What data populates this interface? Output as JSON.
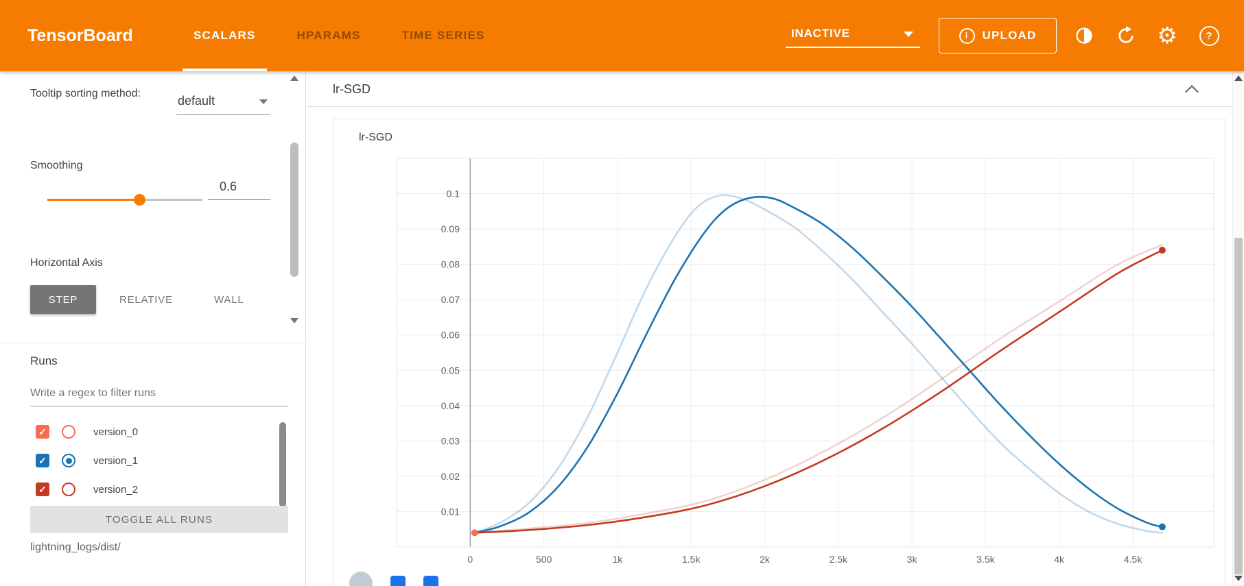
{
  "colors": {
    "accent": "#f57c00",
    "run_colors": {
      "version_0": "#fb6d51",
      "version_1": "#1a73b5",
      "version_2": "#c5391f"
    }
  },
  "icons": {
    "settings_glyph": "⚙",
    "help_glyph": "?",
    "upload_info_glyph": "i",
    "check_glyph": "✓"
  },
  "header": {
    "brand": "TensorBoard",
    "tabs": [
      {
        "label": "SCALARS",
        "active": true
      },
      {
        "label": "HPARAMS",
        "active": false
      },
      {
        "label": "TIME SERIES",
        "active": false
      }
    ],
    "status": "INACTIVE",
    "upload": "UPLOAD"
  },
  "sidebar": {
    "tooltip_sorting_label": "Tooltip sorting method:",
    "tooltip_sorting_value": "default",
    "smoothing_label": "Smoothing",
    "smoothing_value": "0.6",
    "horizontal_axis_label": "Horizontal Axis",
    "axis_buttons": [
      {
        "label": "STEP",
        "active": true
      },
      {
        "label": "RELATIVE",
        "active": false
      },
      {
        "label": "WALL",
        "active": false
      }
    ],
    "runs_label": "Runs",
    "filter_placeholder": "Write a regex to filter runs",
    "runs": [
      {
        "name": "version_0",
        "color": "#fb6d51",
        "checked": true,
        "radio": false
      },
      {
        "name": "version_1",
        "color": "#1a73b5",
        "checked": true,
        "radio": true
      },
      {
        "name": "version_2",
        "color": "#c5391f",
        "checked": true,
        "radio": false
      }
    ],
    "toggle_all_label": "TOGGLE ALL RUNS",
    "logdir": "lightning_logs/dist/"
  },
  "main": {
    "group_title": "lr-SGD"
  },
  "chart_data": {
    "type": "line",
    "title": "lr-SGD",
    "xlim": [
      -500,
      5050
    ],
    "ylim": [
      0,
      0.11
    ],
    "grid": true,
    "legend_position": "none",
    "x_ticks": [
      {
        "v": 0,
        "label": "0"
      },
      {
        "v": 500,
        "label": "500"
      },
      {
        "v": 1000,
        "label": "1k"
      },
      {
        "v": 1500,
        "label": "1.5k"
      },
      {
        "v": 2000,
        "label": "2k"
      },
      {
        "v": 2500,
        "label": "2.5k"
      },
      {
        "v": 3000,
        "label": "3k"
      },
      {
        "v": 3500,
        "label": "3.5k"
      },
      {
        "v": 4000,
        "label": "4k"
      },
      {
        "v": 4500,
        "label": "4.5k"
      }
    ],
    "y_ticks": [
      {
        "v": 0.01,
        "label": "0.01"
      },
      {
        "v": 0.02,
        "label": "0.02"
      },
      {
        "v": 0.03,
        "label": "0.03"
      },
      {
        "v": 0.04,
        "label": "0.04"
      },
      {
        "v": 0.05,
        "label": "0.05"
      },
      {
        "v": 0.06,
        "label": "0.06"
      },
      {
        "v": 0.07,
        "label": "0.07"
      },
      {
        "v": 0.08,
        "label": "0.08"
      },
      {
        "v": 0.09,
        "label": "0.09"
      },
      {
        "v": 0.1,
        "label": "0.1"
      }
    ],
    "series": [
      {
        "name": "version_1",
        "kind": "raw",
        "color": "#1a73b5",
        "opacity": 0.27,
        "points": [
          [
            30,
            0.004
          ],
          [
            200,
            0.0068
          ],
          [
            400,
            0.0125
          ],
          [
            600,
            0.0225
          ],
          [
            800,
            0.037
          ],
          [
            1000,
            0.055
          ],
          [
            1200,
            0.0735
          ],
          [
            1400,
            0.0885
          ],
          [
            1550,
            0.0965
          ],
          [
            1700,
            0.0995
          ],
          [
            1850,
            0.0985
          ],
          [
            2000,
            0.0955
          ],
          [
            2200,
            0.0905
          ],
          [
            2400,
            0.0835
          ],
          [
            2600,
            0.0755
          ],
          [
            2800,
            0.0665
          ],
          [
            3000,
            0.0575
          ],
          [
            3200,
            0.048
          ],
          [
            3400,
            0.0385
          ],
          [
            3600,
            0.0295
          ],
          [
            3800,
            0.022
          ],
          [
            4000,
            0.0152
          ],
          [
            4200,
            0.01
          ],
          [
            4400,
            0.0065
          ],
          [
            4600,
            0.0045
          ],
          [
            4700,
            0.004
          ]
        ]
      },
      {
        "name": "version_2",
        "kind": "raw",
        "color": "#c5391f",
        "opacity": 0.22,
        "points": [
          [
            30,
            0.004
          ],
          [
            400,
            0.0052
          ],
          [
            800,
            0.0068
          ],
          [
            1200,
            0.0095
          ],
          [
            1600,
            0.013
          ],
          [
            2000,
            0.019
          ],
          [
            2400,
            0.027
          ],
          [
            2800,
            0.0365
          ],
          [
            3200,
            0.0475
          ],
          [
            3600,
            0.059
          ],
          [
            4000,
            0.0695
          ],
          [
            4400,
            0.08
          ],
          [
            4700,
            0.0855
          ]
        ]
      },
      {
        "name": "version_1",
        "kind": "smoothed",
        "color": "#1a73b5",
        "opacity": 1,
        "points": [
          [
            30,
            0.004
          ],
          [
            200,
            0.0058
          ],
          [
            400,
            0.0098
          ],
          [
            600,
            0.0172
          ],
          [
            800,
            0.0285
          ],
          [
            1000,
            0.0435
          ],
          [
            1200,
            0.0605
          ],
          [
            1400,
            0.0765
          ],
          [
            1600,
            0.0895
          ],
          [
            1750,
            0.096
          ],
          [
            1900,
            0.0988
          ],
          [
            2050,
            0.0987
          ],
          [
            2200,
            0.096
          ],
          [
            2400,
            0.0912
          ],
          [
            2600,
            0.0845
          ],
          [
            2800,
            0.0765
          ],
          [
            3000,
            0.068
          ],
          [
            3200,
            0.0588
          ],
          [
            3400,
            0.0495
          ],
          [
            3600,
            0.0402
          ],
          [
            3800,
            0.0315
          ],
          [
            4000,
            0.0235
          ],
          [
            4200,
            0.0165
          ],
          [
            4400,
            0.0108
          ],
          [
            4600,
            0.0068
          ],
          [
            4700,
            0.0057
          ]
        ]
      },
      {
        "name": "version_2",
        "kind": "smoothed",
        "color": "#c5391f",
        "opacity": 1,
        "points": [
          [
            30,
            0.004
          ],
          [
            400,
            0.0048
          ],
          [
            800,
            0.0062
          ],
          [
            1200,
            0.0085
          ],
          [
            1600,
            0.0118
          ],
          [
            2000,
            0.0172
          ],
          [
            2400,
            0.0245
          ],
          [
            2800,
            0.0335
          ],
          [
            3200,
            0.044
          ],
          [
            3600,
            0.0555
          ],
          [
            4000,
            0.0665
          ],
          [
            4400,
            0.0775
          ],
          [
            4700,
            0.084
          ]
        ]
      },
      {
        "name": "version_0",
        "kind": "smoothed",
        "color": "#fb6d51",
        "opacity": 1,
        "points": [
          [
            30,
            0.004
          ]
        ]
      }
    ],
    "end_markers": [
      {
        "run": "version_0",
        "x": 30,
        "y": 0.004,
        "color": "#fb6d51"
      },
      {
        "run": "version_1",
        "x": 4700,
        "y": 0.0057,
        "color": "#1a73b5"
      },
      {
        "run": "version_2",
        "x": 4700,
        "y": 0.084,
        "color": "#c5391f"
      }
    ]
  }
}
